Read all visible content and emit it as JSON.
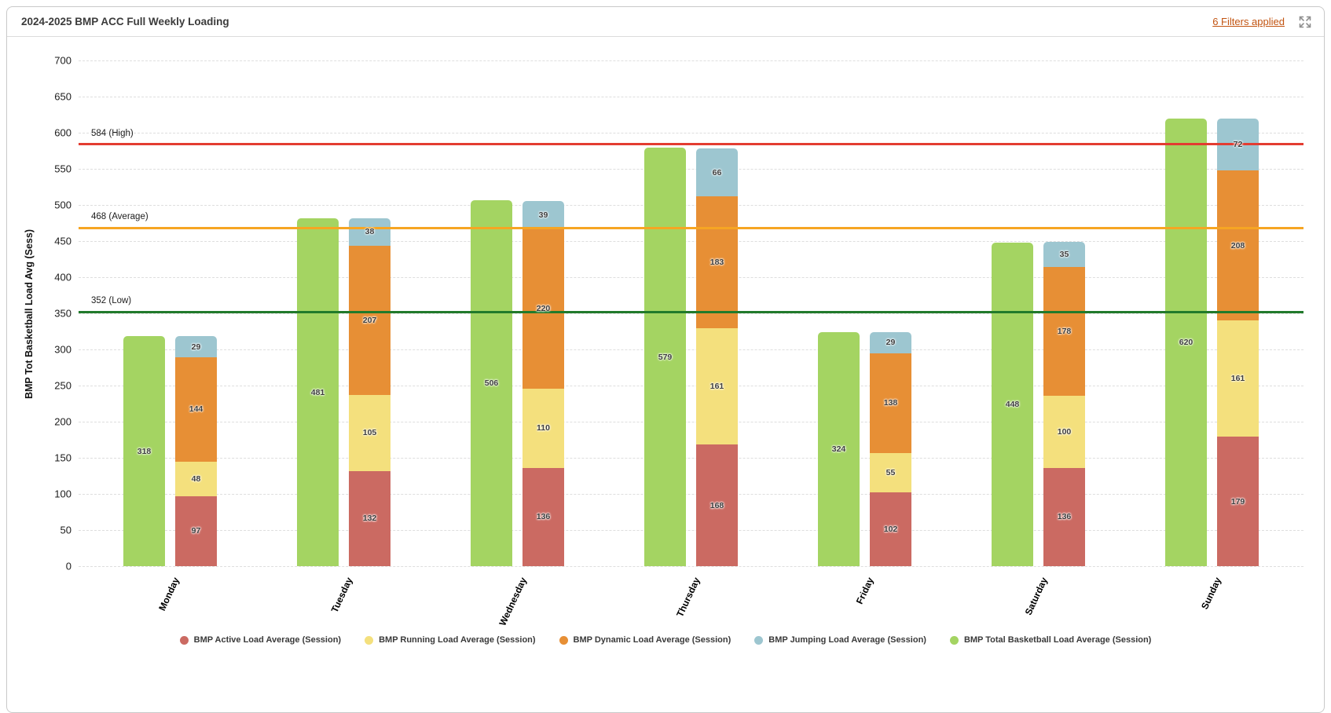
{
  "header": {
    "title": "2024-2025 BMP ACC Full Weekly Loading",
    "filters_link": "6 Filters applied"
  },
  "chart_data": {
    "type": "bar",
    "stacked": true,
    "title": "2024-2025 BMP ACC Full Weekly Loading",
    "categories": [
      "Monday",
      "Tuesday",
      "Wednesday",
      "Thursday",
      "Friday",
      "Saturday",
      "Sunday"
    ],
    "series": [
      {
        "name": "BMP Active Load Average (Session)",
        "role": "stack",
        "color": "#cb6a62",
        "values": [
          97,
          132,
          136,
          168,
          102,
          136,
          179
        ]
      },
      {
        "name": "BMP Running Load Average (Session)",
        "role": "stack",
        "color": "#f4e07d",
        "values": [
          48,
          105,
          110,
          161,
          55,
          100,
          161
        ]
      },
      {
        "name": "BMP Dynamic Load Average (Session)",
        "role": "stack",
        "color": "#e78f35",
        "values": [
          144,
          207,
          220,
          183,
          138,
          178,
          208
        ]
      },
      {
        "name": "BMP Jumping Load Average (Session)",
        "role": "stack",
        "color": "#9dc6d0",
        "values": [
          29,
          38,
          39,
          66,
          29,
          35,
          72
        ]
      },
      {
        "name": "BMP Total Basketball Load Average (Session)",
        "role": "total",
        "color": "#a4d462",
        "values": [
          318,
          481,
          506,
          579,
          324,
          448,
          620
        ]
      }
    ],
    "reference_lines": [
      {
        "label": "584 (High)",
        "value": 584,
        "color": "#e33c31"
      },
      {
        "label": "468 (Average)",
        "value": 468,
        "color": "#f6a523"
      },
      {
        "label": "352 (Low)",
        "value": 352,
        "color": "#217a2b"
      }
    ],
    "ylabel": "BMP Tot Basketball Load Avg (Sess)",
    "xlabel": "",
    "ylim": [
      0,
      700
    ],
    "ytick_step": 50,
    "grid": "dashed-horizontal",
    "legend_position": "bottom",
    "bar_value_labels": true
  }
}
